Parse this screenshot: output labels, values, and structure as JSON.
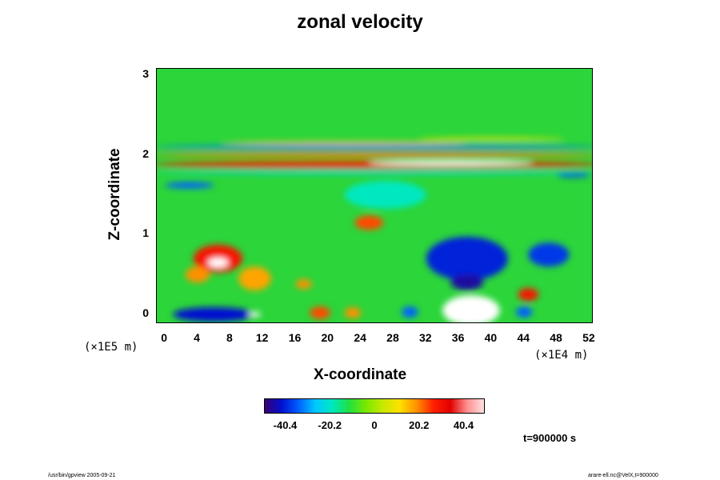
{
  "header": {
    "title": "zonal velocity"
  },
  "chart_data": {
    "type": "heatmap",
    "title": "zonal velocity",
    "xlabel": "X-coordinate",
    "ylabel": "Z-coordinate",
    "x_unit": "(×1E4 m)",
    "y_unit": "(×1E5 m)",
    "x_ticks": [
      "0",
      "4",
      "8",
      "12",
      "16",
      "20",
      "24",
      "28",
      "32",
      "36",
      "40",
      "44",
      "48",
      "52"
    ],
    "y_ticks": [
      "0",
      "1",
      "2",
      "3"
    ],
    "xlim": [
      -1,
      52.5
    ],
    "ylim": [
      -0.12,
      3.08
    ],
    "colorbar": {
      "ticks": [
        "-40.4",
        "-20.2",
        "0",
        "20.2",
        "40.4"
      ],
      "range": [
        -50,
        50
      ]
    },
    "features": [
      {
        "x": 6,
        "z": 0.0,
        "w": 10,
        "h": 0.18,
        "value": -40
      },
      {
        "x": 11,
        "z": 0.0,
        "w": 1.5,
        "h": 0.06,
        "value": 50
      },
      {
        "x": 19,
        "z": 0.02,
        "w": 2.5,
        "h": 0.16,
        "value": 35
      },
      {
        "x": 23,
        "z": 0.02,
        "w": 2,
        "h": 0.14,
        "value": 30
      },
      {
        "x": 30,
        "z": 0.03,
        "w": 2,
        "h": 0.14,
        "value": -30
      },
      {
        "x": 37.5,
        "z": 0.05,
        "w": 7,
        "h": 0.38,
        "value": 50
      },
      {
        "x": 44,
        "z": 0.03,
        "w": 2,
        "h": 0.14,
        "value": -30
      },
      {
        "x": 44.5,
        "z": 0.25,
        "w": 2.5,
        "h": 0.16,
        "value": 40
      },
      {
        "x": 37,
        "z": 0.7,
        "w": 10,
        "h": 0.55,
        "value": -38
      },
      {
        "x": 37,
        "z": 0.4,
        "w": 4,
        "h": 0.2,
        "value": -45
      },
      {
        "x": 47,
        "z": 0.75,
        "w": 5,
        "h": 0.3,
        "value": -35
      },
      {
        "x": 6.5,
        "z": 0.7,
        "w": 6,
        "h": 0.35,
        "value": 40
      },
      {
        "x": 6.5,
        "z": 0.65,
        "w": 2.5,
        "h": 0.12,
        "value": 50
      },
      {
        "x": 4,
        "z": 0.5,
        "w": 3,
        "h": 0.2,
        "value": 30
      },
      {
        "x": 11,
        "z": 0.45,
        "w": 4,
        "h": 0.3,
        "value": 28
      },
      {
        "x": 17,
        "z": 0.38,
        "w": 2,
        "h": 0.12,
        "value": 30
      },
      {
        "x": 25,
        "z": 1.15,
        "w": 3.5,
        "h": 0.18,
        "value": 35
      },
      {
        "x": 27,
        "z": 1.5,
        "w": 10,
        "h": 0.35,
        "value": -12
      },
      {
        "x": 3,
        "z": 1.62,
        "w": 6,
        "h": 0.08,
        "value": -30
      },
      {
        "x": 50,
        "z": 1.75,
        "w": 4,
        "h": 0.06,
        "value": -35
      },
      {
        "x": 26,
        "z": 1.88,
        "w": 55,
        "h": 0.09,
        "value": 38
      },
      {
        "x": 35,
        "z": 1.9,
        "w": 20,
        "h": 0.06,
        "value": 50
      },
      {
        "x": 26,
        "z": 2.0,
        "w": 55,
        "h": 0.06,
        "value": 32
      },
      {
        "x": 26,
        "z": 2.1,
        "w": 55,
        "h": 0.05,
        "value": -28
      },
      {
        "x": 22,
        "z": 2.15,
        "w": 30,
        "h": 0.04,
        "value": 25
      },
      {
        "x": 40,
        "z": 2.2,
        "w": 18,
        "h": 0.04,
        "value": 20
      },
      {
        "x": 26,
        "z": 1.78,
        "w": 55,
        "h": 0.04,
        "value": -18
      }
    ]
  },
  "annotation": {
    "time": "t=900000 s"
  },
  "footer": {
    "left": "/usr/bin/gpview 2005-09-21",
    "right": "arare-ell.nc@VelX,t=900000"
  }
}
